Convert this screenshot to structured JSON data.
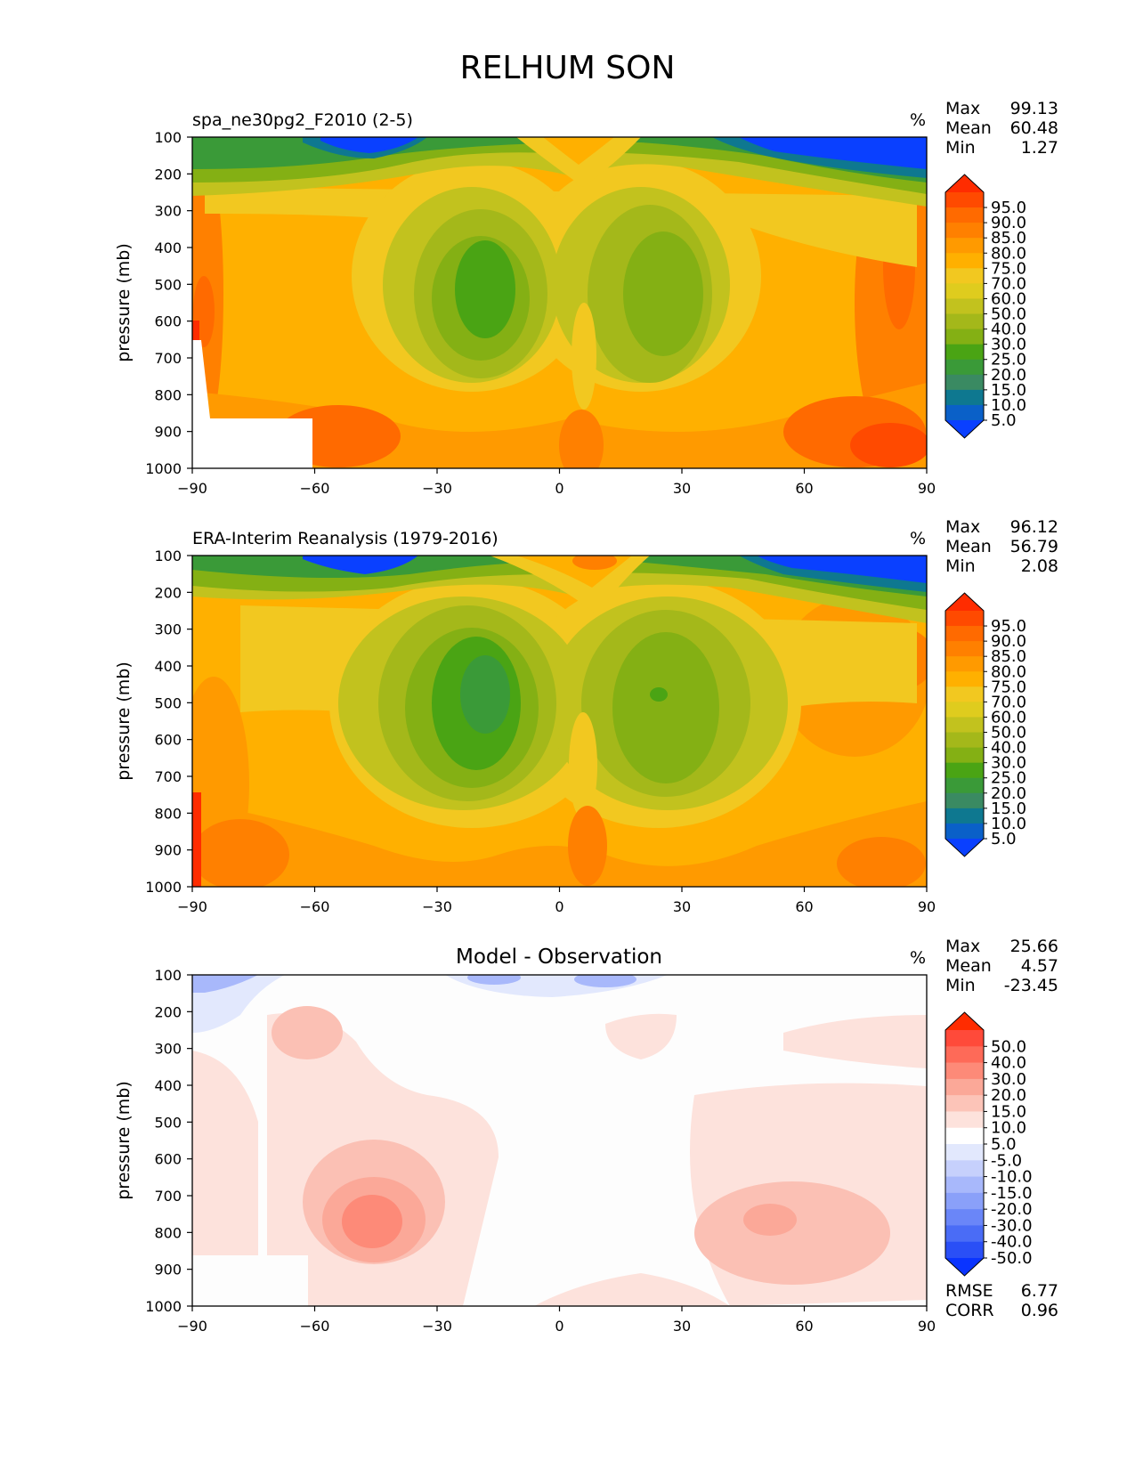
{
  "figure_title": "RELHUM SON",
  "axis": {
    "ylabel": "pressure (mb)",
    "yticks": [
      "100",
      "200",
      "300",
      "400",
      "500",
      "600",
      "700",
      "800",
      "900",
      "1000"
    ],
    "xticks": [
      "−90",
      "−60",
      "−30",
      "0",
      "30",
      "60",
      "90"
    ]
  },
  "chart_data": [
    {
      "type": "heatmap",
      "title": "spa_ne30pg2_F2010 (2-5)",
      "units": "%",
      "x_range": [
        -90,
        90
      ],
      "y_range": [
        1000,
        100
      ],
      "stats": [
        {
          "label": "Max",
          "value": "99.13"
        },
        {
          "label": "Mean",
          "value": "60.48"
        },
        {
          "label": "Min",
          "value": "1.27"
        }
      ],
      "colorbar": {
        "labels": [
          "95.0",
          "90.0",
          "85.0",
          "80.0",
          "75.0",
          "70.0",
          "60.0",
          "50.0",
          "40.0",
          "30.0",
          "25.0",
          "20.0",
          "15.0",
          "10.0",
          "5.0"
        ],
        "colors": [
          "#ff2c00",
          "#ff4a00",
          "#ff6a00",
          "#ff8000",
          "#ff9a00",
          "#ffb000",
          "#f2c820",
          "#dfcc1e",
          "#c2c21e",
          "#a4b81a",
          "#84b014",
          "#4aa414",
          "#3a9a38",
          "#3a8a62",
          "#0e7890",
          "#0a60c8",
          "#0a40ff"
        ],
        "extend": "both"
      }
    },
    {
      "type": "heatmap",
      "title": "ERA-Interim Reanalysis (1979-2016)",
      "units": "%",
      "x_range": [
        -90,
        90
      ],
      "y_range": [
        1000,
        100
      ],
      "stats": [
        {
          "label": "Max",
          "value": "96.12"
        },
        {
          "label": "Mean",
          "value": "56.79"
        },
        {
          "label": "Min",
          "value": "2.08"
        }
      ],
      "colorbar": {
        "labels": [
          "95.0",
          "90.0",
          "85.0",
          "80.0",
          "75.0",
          "70.0",
          "60.0",
          "50.0",
          "40.0",
          "30.0",
          "25.0",
          "20.0",
          "15.0",
          "10.0",
          "5.0"
        ],
        "colors": [
          "#ff2c00",
          "#ff4a00",
          "#ff6a00",
          "#ff8000",
          "#ff9a00",
          "#ffb000",
          "#f2c820",
          "#dfcc1e",
          "#c2c21e",
          "#a4b81a",
          "#84b014",
          "#4aa414",
          "#3a9a38",
          "#3a8a62",
          "#0e7890",
          "#0a60c8",
          "#0a40ff"
        ],
        "extend": "both"
      }
    },
    {
      "type": "heatmap",
      "title": "Model - Observation",
      "units": "%",
      "x_range": [
        -90,
        90
      ],
      "y_range": [
        1000,
        100
      ],
      "stats": [
        {
          "label": "Max",
          "value": "25.66"
        },
        {
          "label": "Mean",
          "value": "4.57"
        },
        {
          "label": "Min",
          "value": "-23.45"
        }
      ],
      "extra_stats": [
        {
          "label": "RMSE",
          "value": "6.77"
        },
        {
          "label": "CORR",
          "value": "0.96"
        }
      ],
      "colorbar": {
        "labels": [
          "50.0",
          "40.0",
          "30.0",
          "20.0",
          "15.0",
          "10.0",
          "5.0",
          "-5.0",
          "-10.0",
          "-15.0",
          "-20.0",
          "-30.0",
          "-40.0",
          "-50.0"
        ],
        "colors": [
          "#ff2c00",
          "#ff4a3a",
          "#fe6a58",
          "#fd8a78",
          "#fba898",
          "#fcc4b8",
          "#fde2dc",
          "#ffffff",
          "#e2e8fd",
          "#c6d0fc",
          "#a8b8fb",
          "#8aa0f9",
          "#6a86f8",
          "#4a6cf6",
          "#2a4ff6",
          "#0a34ff"
        ],
        "extend": "both"
      }
    }
  ]
}
